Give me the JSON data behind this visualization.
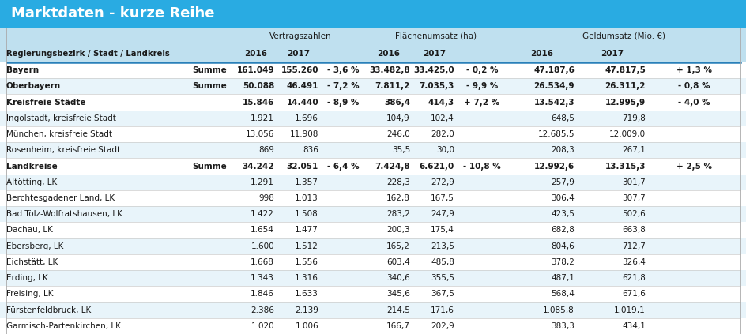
{
  "title": "Marktdaten - kurze Reihe",
  "title_bg": "#29ABE2",
  "title_color": "#FFFFFF",
  "header_bg": "#BFE0EF",
  "row_alt_bg": "#E8F4FA",
  "row_white_bg": "#FFFFFF",
  "rows": [
    {
      "name": "Bayern",
      "label": "Summe",
      "bold": true,
      "bg": "white",
      "v2016": "161.049",
      "v2017": "155.260",
      "vpct": "- 3,6 %",
      "f2016": "33.482,8",
      "f2017": "33.425,0",
      "fpct": "- 0,2 %",
      "g2016": "47.187,6",
      "g2017": "47.817,5",
      "gpct": "+ 1,3 %"
    },
    {
      "name": "Oberbayern",
      "label": "Summe",
      "bold": true,
      "bg": "alt",
      "v2016": "50.088",
      "v2017": "46.491",
      "vpct": "- 7,2 %",
      "f2016": "7.811,2",
      "f2017": "7.035,3",
      "fpct": "- 9,9 %",
      "g2016": "26.534,9",
      "g2017": "26.311,2",
      "gpct": "- 0,8 %"
    },
    {
      "name": "Kreisfreie Städte",
      "label": "",
      "bold": true,
      "bg": "white",
      "v2016": "15.846",
      "v2017": "14.440",
      "vpct": "- 8,9 %",
      "f2016": "386,4",
      "f2017": "414,3",
      "fpct": "+ 7,2 %",
      "g2016": "13.542,3",
      "g2017": "12.995,9",
      "gpct": "- 4,0 %"
    },
    {
      "name": "Ingolstadt, kreisfreie Stadt",
      "label": "",
      "bold": false,
      "bg": "alt",
      "v2016": "1.921",
      "v2017": "1.696",
      "vpct": "",
      "f2016": "104,9",
      "f2017": "102,4",
      "fpct": "",
      "g2016": "648,5",
      "g2017": "719,8",
      "gpct": ""
    },
    {
      "name": "München, kreisfreie Stadt",
      "label": "",
      "bold": false,
      "bg": "white",
      "v2016": "13.056",
      "v2017": "11.908",
      "vpct": "",
      "f2016": "246,0",
      "f2017": "282,0",
      "fpct": "",
      "g2016": "12.685,5",
      "g2017": "12.009,0",
      "gpct": ""
    },
    {
      "name": "Rosenheim, kreisfreie Stadt",
      "label": "",
      "bold": false,
      "bg": "alt",
      "v2016": "869",
      "v2017": "836",
      "vpct": "",
      "f2016": "35,5",
      "f2017": "30,0",
      "fpct": "",
      "g2016": "208,3",
      "g2017": "267,1",
      "gpct": ""
    },
    {
      "name": "Landkreise",
      "label": "Summe",
      "bold": true,
      "bg": "white",
      "v2016": "34.242",
      "v2017": "32.051",
      "vpct": "- 6,4 %",
      "f2016": "7.424,8",
      "f2017": "6.621,0",
      "fpct": "- 10,8 %",
      "g2016": "12.992,6",
      "g2017": "13.315,3",
      "gpct": "+ 2,5 %"
    },
    {
      "name": "Altötting, LK",
      "label": "",
      "bold": false,
      "bg": "alt",
      "v2016": "1.291",
      "v2017": "1.357",
      "vpct": "",
      "f2016": "228,3",
      "f2017": "272,9",
      "fpct": "",
      "g2016": "257,9",
      "g2017": "301,7",
      "gpct": ""
    },
    {
      "name": "Berchtesgadener Land, LK",
      "label": "",
      "bold": false,
      "bg": "white",
      "v2016": "998",
      "v2017": "1.013",
      "vpct": "",
      "f2016": "162,8",
      "f2017": "167,5",
      "fpct": "",
      "g2016": "306,4",
      "g2017": "307,7",
      "gpct": ""
    },
    {
      "name": "Bad Tölz-Wolfratshausen, LK",
      "label": "",
      "bold": false,
      "bg": "alt",
      "v2016": "1.422",
      "v2017": "1.508",
      "vpct": "",
      "f2016": "283,2",
      "f2017": "247,9",
      "fpct": "",
      "g2016": "423,5",
      "g2017": "502,6",
      "gpct": ""
    },
    {
      "name": "Dachau, LK",
      "label": "",
      "bold": false,
      "bg": "white",
      "v2016": "1.654",
      "v2017": "1.477",
      "vpct": "",
      "f2016": "200,3",
      "f2017": "175,4",
      "fpct": "",
      "g2016": "682,8",
      "g2017": "663,8",
      "gpct": ""
    },
    {
      "name": "Ebersberg, LK",
      "label": "",
      "bold": false,
      "bg": "alt",
      "v2016": "1.600",
      "v2017": "1.512",
      "vpct": "",
      "f2016": "165,2",
      "f2017": "213,5",
      "fpct": "",
      "g2016": "804,6",
      "g2017": "712,7",
      "gpct": ""
    },
    {
      "name": "Eichstätt, LK",
      "label": "",
      "bold": false,
      "bg": "white",
      "v2016": "1.668",
      "v2017": "1.556",
      "vpct": "",
      "f2016": "603,4",
      "f2017": "485,8",
      "fpct": "",
      "g2016": "378,2",
      "g2017": "326,4",
      "gpct": ""
    },
    {
      "name": "Erding, LK",
      "label": "",
      "bold": false,
      "bg": "alt",
      "v2016": "1.343",
      "v2017": "1.316",
      "vpct": "",
      "f2016": "340,6",
      "f2017": "355,5",
      "fpct": "",
      "g2016": "487,1",
      "g2017": "621,8",
      "gpct": ""
    },
    {
      "name": "Freising, LK",
      "label": "",
      "bold": false,
      "bg": "white",
      "v2016": "1.846",
      "v2017": "1.633",
      "vpct": "",
      "f2016": "345,6",
      "f2017": "367,5",
      "fpct": "",
      "g2016": "568,4",
      "g2017": "671,6",
      "gpct": ""
    },
    {
      "name": "Fürstenfeldbruck, LK",
      "label": "",
      "bold": false,
      "bg": "alt",
      "v2016": "2.386",
      "v2017": "2.139",
      "vpct": "",
      "f2016": "214,5",
      "f2017": "171,6",
      "fpct": "",
      "g2016": "1.085,8",
      "g2017": "1.019,1",
      "gpct": ""
    },
    {
      "name": "Garmisch-Partenkirchen, LK",
      "label": "",
      "bold": false,
      "bg": "white",
      "v2016": "1.020",
      "v2017": "1.006",
      "vpct": "",
      "f2016": "166,7",
      "f2017": "202,9",
      "fpct": "",
      "g2016": "383,3",
      "g2017": "434,1",
      "gpct": ""
    }
  ]
}
